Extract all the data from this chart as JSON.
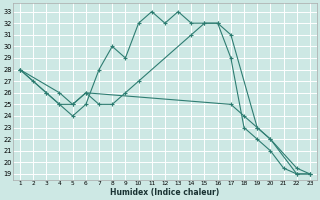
{
  "xlabel": "Humidex (Indice chaleur)",
  "bg_color": "#cde8e4",
  "grid_color": "#b8d8d4",
  "line_color": "#2e7d72",
  "xlim": [
    0.5,
    23.5
  ],
  "ylim": [
    18.5,
    33.7
  ],
  "xticks": [
    1,
    2,
    3,
    4,
    5,
    6,
    7,
    8,
    9,
    10,
    11,
    12,
    13,
    14,
    15,
    16,
    17,
    18,
    19,
    20,
    21,
    22,
    23
  ],
  "yticks": [
    19,
    20,
    21,
    22,
    23,
    24,
    25,
    26,
    27,
    28,
    29,
    30,
    31,
    32,
    33
  ],
  "line1_x": [
    1,
    2,
    3,
    4,
    5,
    6,
    7,
    8,
    9,
    10,
    11,
    12,
    13,
    14,
    15,
    16,
    17,
    18,
    19,
    20,
    21,
    22,
    23
  ],
  "line1_y": [
    28,
    27,
    26,
    25,
    24,
    25,
    28,
    30,
    29,
    32,
    33,
    32,
    33,
    32,
    32,
    32,
    29,
    23,
    22,
    21,
    19.5,
    19,
    19
  ],
  "line2_x": [
    1,
    3,
    4,
    5,
    6,
    7,
    8,
    9,
    10,
    14,
    15,
    16,
    17,
    19,
    20,
    22,
    23
  ],
  "line2_y": [
    28,
    26,
    25,
    25,
    26,
    25,
    25,
    26,
    27,
    31,
    32,
    32,
    31,
    23,
    22,
    19,
    19
  ],
  "line3_x": [
    1,
    4,
    5,
    6,
    17,
    18,
    19,
    20,
    22,
    23
  ],
  "line3_y": [
    28,
    26,
    25,
    26,
    25,
    24,
    23,
    22,
    19.5,
    19
  ]
}
